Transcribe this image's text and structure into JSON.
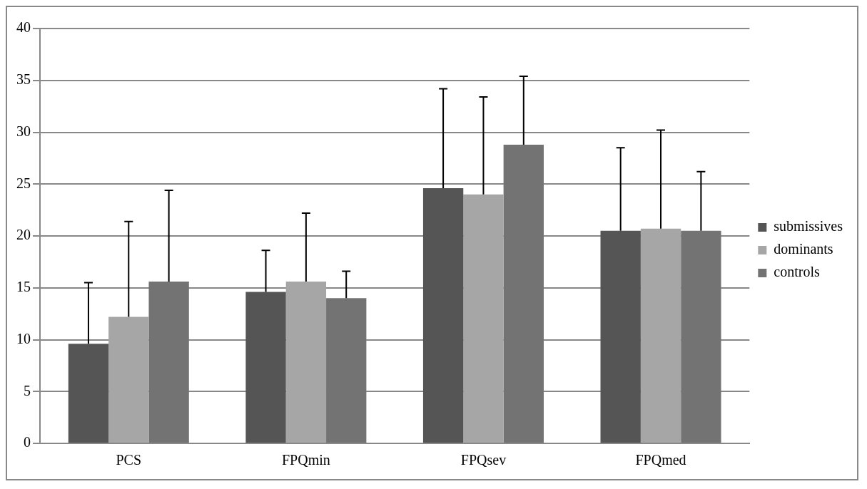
{
  "chart_data": {
    "type": "bar",
    "categories": [
      "PCS",
      "FPQmin",
      "FPQsev",
      "FPQmed"
    ],
    "series": [
      {
        "name": "submissives",
        "color": "#555555",
        "values": [
          9.6,
          14.6,
          24.6,
          20.5
        ],
        "errors": [
          [
            9.6,
            15.5
          ],
          [
            14.6,
            18.6
          ],
          [
            24.6,
            34.2
          ],
          [
            20.5,
            28.5
          ]
        ]
      },
      {
        "name": "dominants",
        "color": "#a6a6a6",
        "values": [
          12.2,
          15.6,
          24.0,
          20.7
        ],
        "errors": [
          [
            12.2,
            21.4
          ],
          [
            15.6,
            22.2
          ],
          [
            24.0,
            33.4
          ],
          [
            20.7,
            30.2
          ]
        ]
      },
      {
        "name": "controls",
        "color": "#737373",
        "values": [
          15.6,
          14.0,
          28.8,
          20.5
        ],
        "errors": [
          [
            15.6,
            24.4
          ],
          [
            14.0,
            16.6
          ],
          [
            28.8,
            35.4
          ],
          [
            20.5,
            26.2
          ]
        ]
      }
    ],
    "ylim": [
      0,
      40
    ],
    "yticks": [
      0,
      5,
      10,
      15,
      20,
      25,
      30,
      35,
      40
    ],
    "grid": "y",
    "legend": "right"
  }
}
